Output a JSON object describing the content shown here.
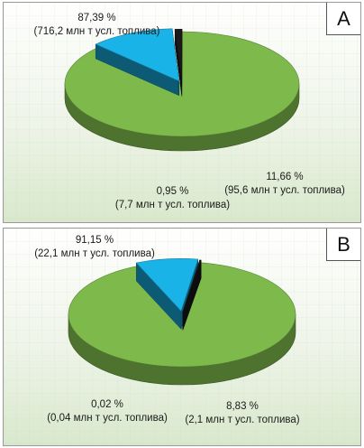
{
  "chart_data": [
    {
      "type": "pie",
      "panel_label": "A",
      "slices": [
        {
          "percent_label": "87,39 %",
          "amount_label": "(716,2 млн т усл. топлива)",
          "value": 87.39,
          "color": "#7dba4b"
        },
        {
          "percent_label": "11,66 %",
          "amount_label": "(95,6 млн т усл. топлива)",
          "value": 11.66,
          "color": "#1ab3e8"
        },
        {
          "percent_label": "0,95 %",
          "amount_label": "(7,7 млн т усл. топлива)",
          "value": 0.95,
          "color": "#1a1a1a"
        }
      ]
    },
    {
      "type": "pie",
      "panel_label": "B",
      "slices": [
        {
          "percent_label": "91,15 %",
          "amount_label": "(22,1 млн т усл. топлива)",
          "value": 91.15,
          "color": "#7dba4b"
        },
        {
          "percent_label": "8,83 %",
          "amount_label": "(2,1 млн т усл. топлива)",
          "value": 8.83,
          "color": "#1ab3e8"
        },
        {
          "percent_label": "0,02 %",
          "amount_label": "(0,04 млн т усл. топлива)",
          "value": 0.02,
          "color": "#1a1a1a"
        }
      ]
    }
  ]
}
